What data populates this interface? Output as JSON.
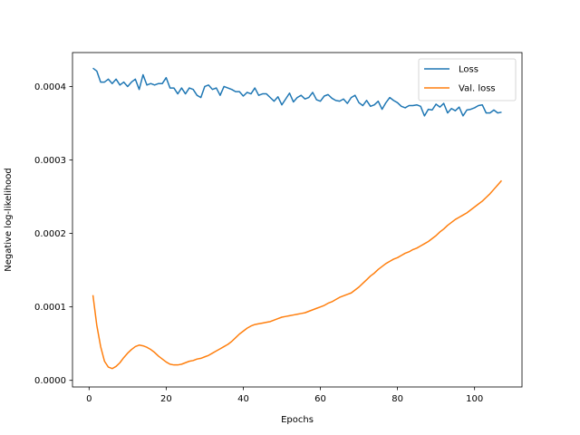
{
  "chart_data": {
    "type": "line",
    "xlabel": "Epochs",
    "ylabel": "Negative log-likelihood",
    "xlim": [
      -4.3,
      112.3
    ],
    "ylim": [
      -9e-06,
      0.0004462
    ],
    "xticks": [
      0,
      20,
      40,
      60,
      80,
      100
    ],
    "xtick_labels": [
      "0",
      "20",
      "40",
      "60",
      "80",
      "100"
    ],
    "yticks": [
      0.0,
      0.0001,
      0.0002,
      0.0003,
      0.0004
    ],
    "ytick_labels": [
      "0.0000",
      "0.0001",
      "0.0002",
      "0.0003",
      "0.0004"
    ],
    "grid": false,
    "legend_position": "upper right",
    "series": [
      {
        "name": "Loss",
        "color": "#1f77b4",
        "x": [
          1,
          2,
          3,
          4,
          5,
          6,
          7,
          8,
          9,
          10,
          11,
          12,
          13,
          14,
          15,
          16,
          17,
          18,
          19,
          20,
          21,
          22,
          23,
          24,
          25,
          26,
          27,
          28,
          29,
          30,
          31,
          32,
          33,
          34,
          35,
          36,
          37,
          38,
          39,
          40,
          41,
          42,
          43,
          44,
          45,
          46,
          47,
          48,
          49,
          50,
          51,
          52,
          53,
          54,
          55,
          56,
          57,
          58,
          59,
          60,
          61,
          62,
          63,
          64,
          65,
          66,
          67,
          68,
          69,
          70,
          71,
          72,
          73,
          74,
          75,
          76,
          77,
          78,
          79,
          80,
          81,
          82,
          83,
          84,
          85,
          86,
          87,
          88,
          89,
          90,
          91,
          92,
          93,
          94,
          95,
          96,
          97,
          98,
          99,
          100,
          101,
          102,
          103,
          104,
          105,
          106,
          107
        ],
        "values": [
          0.000425,
          0.000421,
          0.000406,
          0.000406,
          0.00041,
          0.000404,
          0.00041,
          0.000402,
          0.000406,
          0.0004,
          0.000406,
          0.00041,
          0.000396,
          0.000416,
          0.000402,
          0.000404,
          0.000402,
          0.000404,
          0.000404,
          0.000412,
          0.000398,
          0.000398,
          0.00039,
          0.000398,
          0.00039,
          0.000398,
          0.000396,
          0.000388,
          0.000385,
          0.0004,
          0.000402,
          0.000396,
          0.000398,
          0.000388,
          0.0004,
          0.000398,
          0.000396,
          0.000393,
          0.000393,
          0.000387,
          0.000392,
          0.00039,
          0.000398,
          0.000388,
          0.00039,
          0.00039,
          0.000385,
          0.00038,
          0.000386,
          0.000375,
          0.000383,
          0.000391,
          0.000379,
          0.000385,
          0.000388,
          0.000383,
          0.000385,
          0.000392,
          0.000382,
          0.00038,
          0.000387,
          0.000389,
          0.000384,
          0.000381,
          0.00038,
          0.000383,
          0.000377,
          0.000385,
          0.000388,
          0.000378,
          0.000374,
          0.000381,
          0.000373,
          0.000375,
          0.00038,
          0.000369,
          0.000378,
          0.000385,
          0.000381,
          0.000378,
          0.000373,
          0.000371,
          0.000374,
          0.000374,
          0.000375,
          0.000373,
          0.00036,
          0.000369,
          0.000368,
          0.000376,
          0.000372,
          0.000377,
          0.000364,
          0.00037,
          0.000367,
          0.000372,
          0.00036,
          0.000368,
          0.000369,
          0.000371,
          0.000374,
          0.000375,
          0.000364,
          0.000364,
          0.000368,
          0.000364,
          0.000365
        ]
      },
      {
        "name": "Val. loss",
        "color": "#ff7f0e",
        "x": [
          1,
          2,
          3,
          4,
          5,
          6,
          7,
          8,
          9,
          10,
          11,
          12,
          13,
          14,
          15,
          16,
          17,
          18,
          19,
          20,
          21,
          22,
          23,
          24,
          25,
          26,
          27,
          28,
          29,
          30,
          31,
          32,
          33,
          34,
          35,
          36,
          37,
          38,
          39,
          40,
          41,
          42,
          43,
          44,
          45,
          46,
          47,
          48,
          49,
          50,
          51,
          52,
          53,
          54,
          55,
          56,
          57,
          58,
          59,
          60,
          61,
          62,
          63,
          64,
          65,
          66,
          67,
          68,
          69,
          70,
          71,
          72,
          73,
          74,
          75,
          76,
          77,
          78,
          79,
          80,
          81,
          82,
          83,
          84,
          85,
          86,
          87,
          88,
          89,
          90,
          91,
          92,
          93,
          94,
          95,
          96,
          97,
          98,
          99,
          100,
          101,
          102,
          103,
          104,
          105,
          106,
          107
        ],
        "values": [
          0.000116,
          7.5e-05,
          4.6e-05,
          2.6e-05,
          1.8e-05,
          1.6e-05,
          1.9e-05,
          2.4e-05,
          3.1e-05,
          3.7e-05,
          4.2e-05,
          4.6e-05,
          4.8e-05,
          4.7e-05,
          4.5e-05,
          4.2e-05,
          3.8e-05,
          3.3e-05,
          2.9e-05,
          2.5e-05,
          2.2e-05,
          2.1e-05,
          2.1e-05,
          2.2e-05,
          2.4e-05,
          2.6e-05,
          2.7e-05,
          2.9e-05,
          3e-05,
          3.2e-05,
          3.4e-05,
          3.7e-05,
          4e-05,
          4.3e-05,
          4.6e-05,
          4.9e-05,
          5.3e-05,
          5.8e-05,
          6.3e-05,
          6.7e-05,
          7.1e-05,
          7.4e-05,
          7.6e-05,
          7.7e-05,
          7.8e-05,
          7.9e-05,
          8e-05,
          8.2e-05,
          8.4e-05,
          8.6e-05,
          8.7e-05,
          8.8e-05,
          8.9e-05,
          9e-05,
          9.1e-05,
          9.2e-05,
          9.4e-05,
          9.6e-05,
          9.8e-05,
          0.0001,
          0.000102,
          0.000105,
          0.000107,
          0.00011,
          0.000113,
          0.000115,
          0.000117,
          0.000119,
          0.000123,
          0.000127,
          0.000132,
          0.000137,
          0.000142,
          0.000146,
          0.000151,
          0.000155,
          0.000159,
          0.000162,
          0.000165,
          0.000167,
          0.00017,
          0.000173,
          0.000175,
          0.000178,
          0.00018,
          0.000183,
          0.000186,
          0.000189,
          0.000193,
          0.000197,
          0.000202,
          0.000206,
          0.000211,
          0.000215,
          0.000219,
          0.000222,
          0.000225,
          0.000228,
          0.000232,
          0.000236,
          0.00024,
          0.000244,
          0.000249,
          0.000254,
          0.00026,
          0.000266,
          0.000272
        ]
      }
    ]
  }
}
